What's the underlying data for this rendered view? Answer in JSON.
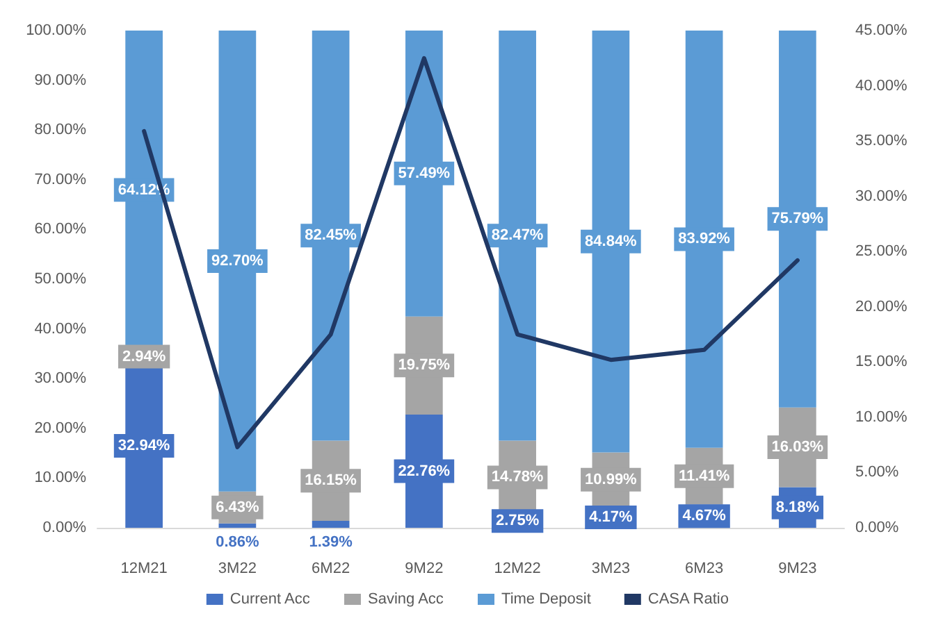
{
  "chart_data": {
    "type": "bar",
    "stacked": true,
    "categories": [
      "12M21",
      "3M22",
      "6M22",
      "9M22",
      "12M22",
      "3M23",
      "6M23",
      "9M23"
    ],
    "series": [
      {
        "name": "Current Acc",
        "color": "#4472c4",
        "values": [
          32.94,
          0.86,
          1.39,
          22.76,
          2.75,
          4.17,
          4.67,
          8.18
        ],
        "value_labels": [
          "32.94%",
          "0.86%",
          "1.39%",
          "22.76%",
          "2.75%",
          "4.17%",
          "4.67%",
          "8.18%"
        ]
      },
      {
        "name": "Saving Acc",
        "color": "#a5a5a5",
        "values": [
          2.94,
          6.43,
          16.15,
          19.75,
          14.78,
          10.99,
          11.41,
          16.03
        ],
        "value_labels": [
          "2.94%",
          "6.43%",
          "16.15%",
          "19.75%",
          "14.78%",
          "10.99%",
          "11.41%",
          "16.03%"
        ]
      },
      {
        "name": "Time Deposit",
        "color": "#5b9bd5",
        "values": [
          64.12,
          92.7,
          82.45,
          57.49,
          82.47,
          84.84,
          83.92,
          75.79
        ],
        "value_labels": [
          "64.12%",
          "92.70%",
          "82.45%",
          "57.49%",
          "82.47%",
          "84.84%",
          "83.92%",
          "75.79%"
        ]
      },
      {
        "name": "CASA Ratio",
        "type": "line",
        "axis": "y2",
        "color": "#203864",
        "values": [
          35.9,
          7.3,
          17.5,
          42.5,
          17.5,
          15.2,
          16.1,
          24.2
        ]
      }
    ],
    "ylim": [
      0,
      100
    ],
    "yticks": [
      {
        "value": 0,
        "label": "0.00%"
      },
      {
        "value": 10,
        "label": "10.00%"
      },
      {
        "value": 20,
        "label": "20.00%"
      },
      {
        "value": 30,
        "label": "30.00%"
      },
      {
        "value": 40,
        "label": "40.00%"
      },
      {
        "value": 50,
        "label": "50.00%"
      },
      {
        "value": 60,
        "label": "60.00%"
      },
      {
        "value": 70,
        "label": "70.00%"
      },
      {
        "value": 80,
        "label": "80.00%"
      },
      {
        "value": 90,
        "label": "90.00%"
      },
      {
        "value": 100,
        "label": "100.00%"
      }
    ],
    "y2lim": [
      0,
      45
    ],
    "y2ticks": [
      {
        "value": 0,
        "label": "0.00%"
      },
      {
        "value": 5,
        "label": "5.00%"
      },
      {
        "value": 10,
        "label": "10.00%"
      },
      {
        "value": 15,
        "label": "15.00%"
      },
      {
        "value": 20,
        "label": "20.00%"
      },
      {
        "value": 25,
        "label": "25.00%"
      },
      {
        "value": 30,
        "label": "30.00%"
      },
      {
        "value": 35,
        "label": "35.00%"
      },
      {
        "value": 40,
        "label": "40.00%"
      },
      {
        "value": 45,
        "label": "45.00%"
      }
    ],
    "grid": false,
    "legend": "bottom",
    "marker": "none",
    "line_style": "solid"
  }
}
